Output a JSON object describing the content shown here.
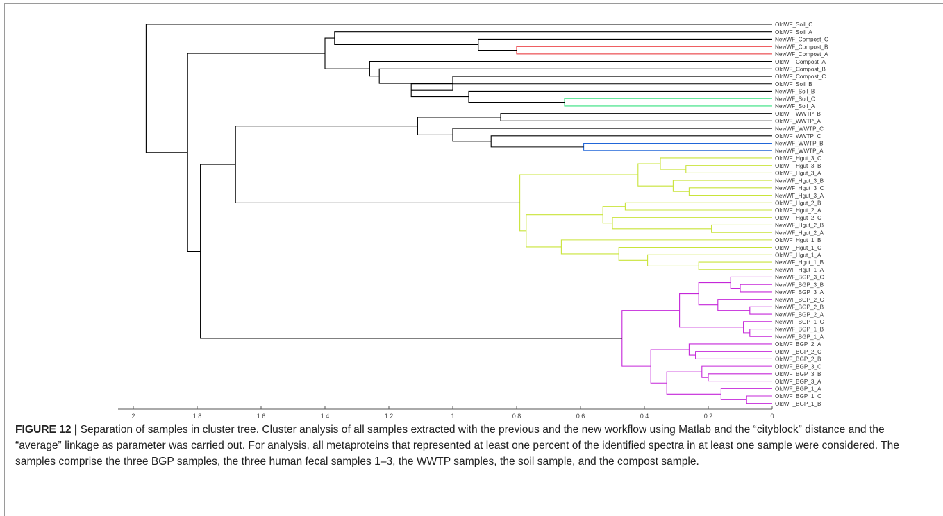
{
  "figure": {
    "label": "FIGURE 12 |",
    "caption": " Separation of samples in cluster tree. Cluster analysis of all samples extracted with the previous and the new workflow using Matlab and the “cityblock” distance and the “average” linkage as parameter was carried out. For analysis, all metaproteins that represented at least one percent of the identified spectra in at least one sample were considered. The samples comprise the three BGP samples, the three human fecal samples 1–3, the WWTP samples, the soil sample, and the compost sample."
  },
  "chart_data": {
    "type": "dendrogram",
    "orientation": "right",
    "xlim": [
      0,
      2.05
    ],
    "x_axis_reversed": true,
    "x_ticks": [
      2,
      1.8,
      1.6,
      1.4,
      1.2,
      1,
      0.8,
      0.6,
      0.4,
      0.2,
      0
    ],
    "x_tick_labels": [
      "2",
      "1.8",
      "1.6",
      "1.4",
      "1.2",
      "1",
      "0.8",
      "0.6",
      "0.4",
      "0.2",
      "0"
    ],
    "leaves": [
      "OldWF_Soil_C",
      "OldWF_Soil_A",
      "NewWF_Compost_C",
      "NewWF_Compost_B",
      "NewWF_Compost_A",
      "OldWF_Compost_A",
      "OldWF_Compost_B",
      "OldWF_Compost_C",
      "OldWF_Soil_B",
      "NewWF_Soil_B",
      "NewWF_Soil_C",
      "NewWF_Soil_A",
      "OldWF_WWTP_B",
      "OldWF_WWTP_A",
      "NewWF_WWTP_C",
      "OldWF_WWTP_C",
      "NewWF_WWTP_B",
      "NewWF_WWTP_A",
      "OldWF_Hgut_3_C",
      "OldWF_Hgut_3_B",
      "OldWF_Hgut_3_A",
      "NewWF_Hgut_3_B",
      "NewWF_Hgut_3_C",
      "NewWF_Hgut_3_A",
      "OldWF_Hgut_2_B",
      "OldWF_Hgut_2_A",
      "OldWF_Hgut_2_C",
      "NewWF_Hgut_2_B",
      "NewWF_Hgut_2_A",
      "OldWF_Hgut_1_B",
      "OldWF_Hgut_1_C",
      "OldWF_Hgut_1_A",
      "NewWF_Hgut_1_B",
      "NewWF_Hgut_1_A",
      "NewWF_BGP_3_C",
      "NewWF_BGP_3_B",
      "NewWF_BGP_3_A",
      "NewWF_BGP_2_C",
      "NewWF_BGP_2_B",
      "NewWF_BGP_2_A",
      "NewWF_BGP_1_C",
      "NewWF_BGP_1_B",
      "NewWF_BGP_1_A",
      "OldWF_BGP_2_A",
      "OldWF_BGP_2_C",
      "OldWF_BGP_2_B",
      "OldWF_BGP_3_C",
      "OldWF_BGP_3_B",
      "OldWF_BGP_3_A",
      "OldWF_BGP_1_A",
      "OldWF_BGP_1_C",
      "OldWF_BGP_1_B"
    ],
    "merges": [
      {
        "id": "n1",
        "children": [
          "NewWF_Compost_B",
          "NewWF_Compost_A"
        ],
        "height": 0.8,
        "color": "#e8292f"
      },
      {
        "id": "n2",
        "children": [
          "NewWF_Compost_C",
          "n1"
        ],
        "height": 0.92,
        "color": "#000000"
      },
      {
        "id": "n3",
        "children": [
          "OldWF_Soil_A",
          "n2"
        ],
        "height": 1.37,
        "color": "#000000"
      },
      {
        "id": "n4",
        "children": [
          "NewWF_Soil_C",
          "NewWF_Soil_A"
        ],
        "height": 0.65,
        "color": "#34e07f"
      },
      {
        "id": "n5",
        "children": [
          "NewWF_Soil_B",
          "n4"
        ],
        "height": 0.95,
        "color": "#000000"
      },
      {
        "id": "n6",
        "children": [
          "OldWF_Soil_B",
          "n5"
        ],
        "height": 1.13,
        "color": "#000000"
      },
      {
        "id": "n7",
        "children": [
          "OldWF_Compost_C",
          "n6"
        ],
        "height": 1.0,
        "color": "#000000"
      },
      {
        "id": "n8",
        "children": [
          "OldWF_Compost_B",
          "n7"
        ],
        "height": 1.23,
        "color": "#000000"
      },
      {
        "id": "n9",
        "children": [
          "OldWF_Compost_A",
          "n8"
        ],
        "height": 1.26,
        "color": "#000000"
      },
      {
        "id": "n10",
        "children": [
          "n3",
          "n9"
        ],
        "height": 1.4,
        "color": "#000000"
      },
      {
        "id": "n11",
        "children": [
          "NewWF_WWTP_B",
          "NewWF_WWTP_A"
        ],
        "height": 0.59,
        "color": "#2166d8"
      },
      {
        "id": "n12",
        "children": [
          "OldWF_WWTP_C",
          "n11"
        ],
        "height": 0.88,
        "color": "#000000"
      },
      {
        "id": "n13",
        "children": [
          "NewWF_WWTP_C",
          "n12"
        ],
        "height": 1.0,
        "color": "#000000"
      },
      {
        "id": "n14",
        "children": [
          "OldWF_WWTP_B",
          "OldWF_WWTP_A"
        ],
        "height": 0.85,
        "color": "#000000"
      },
      {
        "id": "n15",
        "children": [
          "n14",
          "n13"
        ],
        "height": 1.11,
        "color": "#000000"
      },
      {
        "id": "n16",
        "children": [
          "OldWF_Hgut_3_B",
          "OldWF_Hgut_3_A"
        ],
        "height": 0.27,
        "color": "#c9e43a"
      },
      {
        "id": "n17",
        "children": [
          "OldWF_Hgut_3_C",
          "n16"
        ],
        "height": 0.35,
        "color": "#c9e43a"
      },
      {
        "id": "n18",
        "children": [
          "NewWF_Hgut_3_C",
          "NewWF_Hgut_3_A"
        ],
        "height": 0.26,
        "color": "#c9e43a"
      },
      {
        "id": "n19",
        "children": [
          "NewWF_Hgut_3_B",
          "n18"
        ],
        "height": 0.31,
        "color": "#c9e43a"
      },
      {
        "id": "n20",
        "children": [
          "n17",
          "n19"
        ],
        "height": 0.42,
        "color": "#c9e43a"
      },
      {
        "id": "n21",
        "children": [
          "OldWF_Hgut_2_B",
          "OldWF_Hgut_2_A"
        ],
        "height": 0.46,
        "color": "#c9e43a"
      },
      {
        "id": "n22",
        "children": [
          "NewWF_Hgut_2_B",
          "NewWF_Hgut_2_A"
        ],
        "height": 0.19,
        "color": "#c9e43a"
      },
      {
        "id": "n23",
        "children": [
          "OldWF_Hgut_2_C",
          "n22"
        ],
        "height": 0.5,
        "color": "#c9e43a"
      },
      {
        "id": "n24",
        "children": [
          "n21",
          "n23"
        ],
        "height": 0.53,
        "color": "#c9e43a"
      },
      {
        "id": "n25",
        "children": [
          "NewWF_Hgut_1_B",
          "NewWF_Hgut_1_A"
        ],
        "height": 0.23,
        "color": "#c9e43a"
      },
      {
        "id": "n26",
        "children": [
          "OldWF_Hgut_1_A",
          "n25"
        ],
        "height": 0.39,
        "color": "#c9e43a"
      },
      {
        "id": "n27",
        "children": [
          "OldWF_Hgut_1_C",
          "n26"
        ],
        "height": 0.48,
        "color": "#c9e43a"
      },
      {
        "id": "n28",
        "children": [
          "OldWF_Hgut_1_B",
          "n27"
        ],
        "height": 0.66,
        "color": "#c9e43a"
      },
      {
        "id": "n29",
        "children": [
          "n24",
          "n28"
        ],
        "height": 0.77,
        "color": "#c9e43a"
      },
      {
        "id": "n30",
        "children": [
          "n20",
          "n29"
        ],
        "height": 0.79,
        "color": "#c9e43a"
      },
      {
        "id": "n31",
        "children": [
          "n15",
          "n30"
        ],
        "height": 1.68,
        "color": "#000000"
      },
      {
        "id": "n32",
        "children": [
          "NewWF_BGP_3_B",
          "NewWF_BGP_3_A"
        ],
        "height": 0.1,
        "color": "#c527d9"
      },
      {
        "id": "n33",
        "children": [
          "NewWF_BGP_3_C",
          "n32"
        ],
        "height": 0.13,
        "color": "#c527d9"
      },
      {
        "id": "n34",
        "children": [
          "NewWF_BGP_2_B",
          "NewWF_BGP_2_A"
        ],
        "height": 0.07,
        "color": "#c527d9"
      },
      {
        "id": "n35",
        "children": [
          "NewWF_BGP_2_C",
          "n34"
        ],
        "height": 0.17,
        "color": "#c527d9"
      },
      {
        "id": "n36",
        "children": [
          "n33",
          "n35"
        ],
        "height": 0.23,
        "color": "#c527d9"
      },
      {
        "id": "n37",
        "children": [
          "NewWF_BGP_1_B",
          "NewWF_BGP_1_A"
        ],
        "height": 0.07,
        "color": "#c527d9"
      },
      {
        "id": "n38",
        "children": [
          "NewWF_BGP_1_C",
          "n37"
        ],
        "height": 0.09,
        "color": "#c527d9"
      },
      {
        "id": "n39",
        "children": [
          "n36",
          "n38"
        ],
        "height": 0.29,
        "color": "#c527d9"
      },
      {
        "id": "n40",
        "children": [
          "OldWF_BGP_2_C",
          "OldWF_BGP_2_B"
        ],
        "height": 0.24,
        "color": "#c527d9"
      },
      {
        "id": "n41",
        "children": [
          "OldWF_BGP_2_A",
          "n40"
        ],
        "height": 0.26,
        "color": "#c527d9"
      },
      {
        "id": "n42",
        "children": [
          "OldWF_BGP_3_B",
          "OldWF_BGP_3_A"
        ],
        "height": 0.2,
        "color": "#c527d9"
      },
      {
        "id": "n43",
        "children": [
          "OldWF_BGP_3_C",
          "n42"
        ],
        "height": 0.22,
        "color": "#c527d9"
      },
      {
        "id": "n44",
        "children": [
          "OldWF_BGP_1_C",
          "OldWF_BGP_1_B"
        ],
        "height": 0.08,
        "color": "#c527d9"
      },
      {
        "id": "n45",
        "children": [
          "OldWF_BGP_1_A",
          "n44"
        ],
        "height": 0.16,
        "color": "#c527d9"
      },
      {
        "id": "n46",
        "children": [
          "n43",
          "n45"
        ],
        "height": 0.33,
        "color": "#c527d9"
      },
      {
        "id": "n47",
        "children": [
          "n41",
          "n46"
        ],
        "height": 0.38,
        "color": "#c527d9"
      },
      {
        "id": "n48",
        "children": [
          "n39",
          "n47"
        ],
        "height": 0.47,
        "color": "#c527d9"
      },
      {
        "id": "n49",
        "children": [
          "n31",
          "n48"
        ],
        "height": 1.79,
        "color": "#000000"
      },
      {
        "id": "n50",
        "children": [
          "n10",
          "n49"
        ],
        "height": 1.83,
        "color": "#000000"
      },
      {
        "id": "n51",
        "children": [
          "OldWF_Soil_C",
          "n50"
        ],
        "height": 1.96,
        "color": "#000000"
      }
    ]
  }
}
